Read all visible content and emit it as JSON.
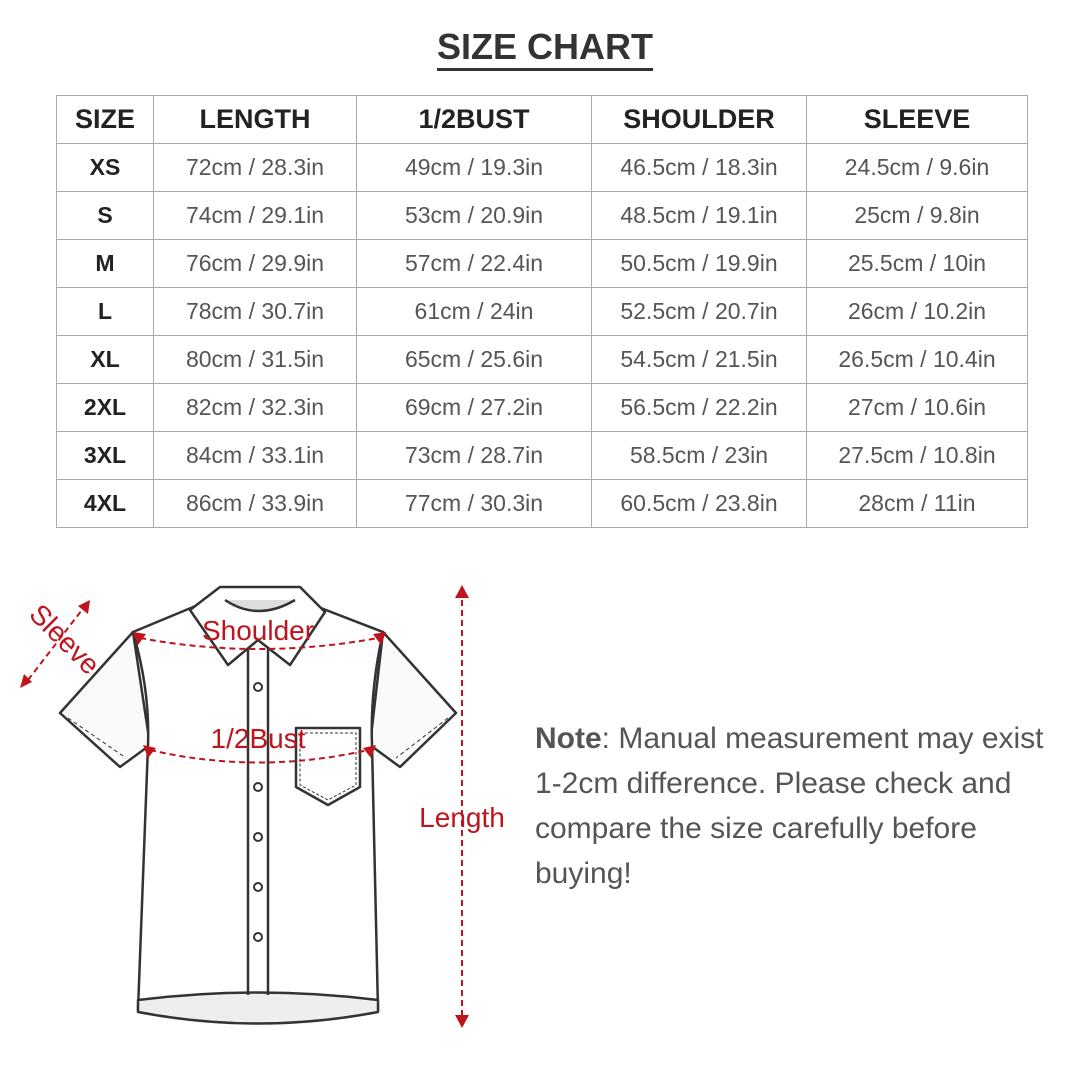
{
  "title": "SIZE CHART",
  "table": {
    "headers": [
      "SIZE",
      "LENGTH",
      "1/2BUST",
      "SHOULDER",
      "SLEEVE"
    ],
    "rows": [
      [
        "XS",
        "72cm / 28.3in",
        "49cm / 19.3in",
        "46.5cm / 18.3in",
        "24.5cm / 9.6in"
      ],
      [
        "S",
        "74cm / 29.1in",
        "53cm / 20.9in",
        "48.5cm / 19.1in",
        "25cm / 9.8in"
      ],
      [
        "M",
        "76cm / 29.9in",
        "57cm / 22.4in",
        "50.5cm / 19.9in",
        "25.5cm / 10in"
      ],
      [
        "L",
        "78cm / 30.7in",
        "61cm / 24in",
        "52.5cm / 20.7in",
        "26cm / 10.2in"
      ],
      [
        "XL",
        "80cm / 31.5in",
        "65cm / 25.6in",
        "54.5cm / 21.5in",
        "26.5cm / 10.4in"
      ],
      [
        "2XL",
        "82cm / 32.3in",
        "69cm / 27.2in",
        "56.5cm / 22.2in",
        "27cm / 10.6in"
      ],
      [
        "3XL",
        "84cm / 33.1in",
        "73cm / 28.7in",
        "58.5cm / 23in",
        "27.5cm / 10.8in"
      ],
      [
        "4XL",
        "86cm / 33.9in",
        "77cm / 30.3in",
        "60.5cm / 23.8in",
        "28cm / 11in"
      ]
    ]
  },
  "diagram": {
    "labels": {
      "sleeve": "Sleeve",
      "shoulder": "Shoulder",
      "bust": "1/2Bust",
      "length": "Length"
    },
    "accent_color": "#c0141c"
  },
  "note": {
    "label": "Note",
    "text": ": Manual measurement may exist 1-2cm difference. Please check and compare the size carefully before buying!"
  }
}
